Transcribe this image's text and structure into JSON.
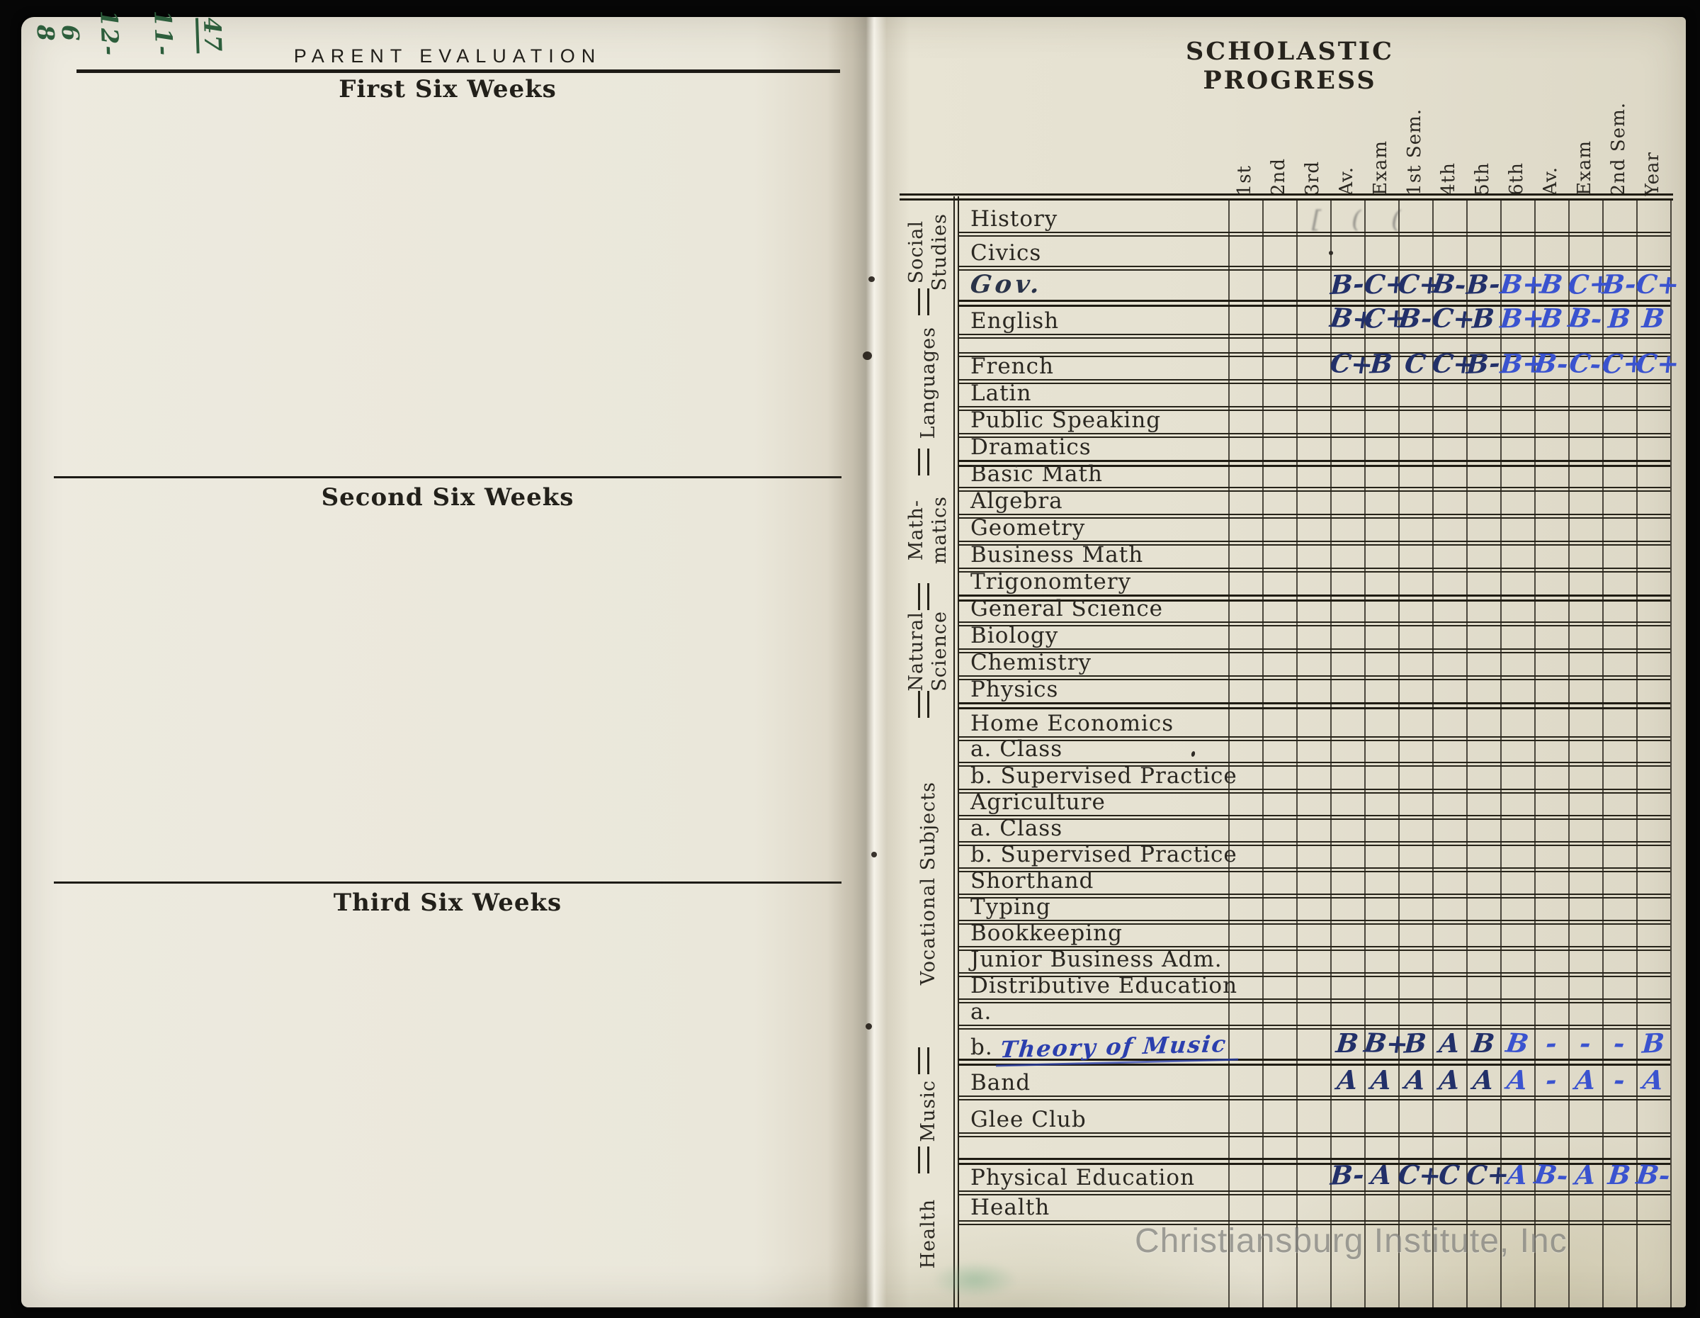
{
  "corner_note": {
    "text": "8 6 12-11/47",
    "tokens": [
      "8",
      "6",
      "12-",
      "11-",
      "47"
    ]
  },
  "left_page": {
    "title": "PARENT EVALUATION",
    "headings": [
      "First Six Weeks",
      "Second Six Weeks",
      "Third Six Weeks"
    ]
  },
  "right_page": {
    "title": "SCHOLASTIC PROGRESS",
    "column_headers": [
      "1st",
      "2nd",
      "3rd",
      "Av.",
      "Exam",
      "1st Sem.",
      "4th",
      "5th",
      "6th",
      "Av.",
      "Exam",
      "2nd Sem.",
      "Year"
    ],
    "grades_start_column": "Av.",
    "sections": [
      {
        "name": "Social Studies",
        "lines": [
          "Social",
          "Studies"
        ],
        "rows": [
          {
            "label": "History"
          },
          {
            "label": "Civics"
          },
          {
            "label": "Gov.",
            "handwritten": true,
            "grades": [
              "B-",
              "C+",
              "C+",
              "B-",
              "B-",
              "B+",
              "B",
              "C+",
              "B-",
              "C+"
            ]
          }
        ]
      },
      {
        "name": "Languages",
        "lines": [
          "Languages"
        ],
        "rows": [
          {
            "label": "English",
            "grades": [
              "B+",
              "C+",
              "B-",
              "C+",
              "B",
              "B+",
              "B",
              "B-",
              "B",
              "B"
            ]
          },
          {
            "label": ""
          },
          {
            "label": "French",
            "grades": [
              "C+",
              "B",
              "C",
              "C+",
              "B-",
              "B+",
              "B-",
              "C-",
              "C+",
              "C+"
            ]
          },
          {
            "label": "Latin"
          },
          {
            "label": "Public Speaking"
          },
          {
            "label": "Dramatics"
          }
        ]
      },
      {
        "name": "Math-matics",
        "lines": [
          "Math-",
          "matics"
        ],
        "rows": [
          {
            "label": "Basic Math"
          },
          {
            "label": "Algebra"
          },
          {
            "label": "Geometry"
          },
          {
            "label": "Business Math"
          },
          {
            "label": "Trigonomtery"
          }
        ]
      },
      {
        "name": "Natural Science",
        "lines": [
          "Natural",
          "Science"
        ],
        "rows": [
          {
            "label": "General Science"
          },
          {
            "label": "Biology"
          },
          {
            "label": "Chemistry"
          },
          {
            "label": "Physics"
          }
        ]
      },
      {
        "name": "Vocational Subjects",
        "lines": [
          "Vocational Subjects"
        ],
        "rows": [
          {
            "label": "Home Economics"
          },
          {
            "label": "a. Class"
          },
          {
            "label": "b. Supervised Practice"
          },
          {
            "label": "Agriculture"
          },
          {
            "label": "a. Class"
          },
          {
            "label": "b. Supervised Practice"
          },
          {
            "label": "Shorthand"
          },
          {
            "label": "Typing"
          },
          {
            "label": "Bookkeeping"
          },
          {
            "label": "Junior Business Adm."
          },
          {
            "label": "Distributive Education"
          },
          {
            "label": "a."
          },
          {
            "label": "b.",
            "handwritten_label": "Theory of Music",
            "grades": [
              "B",
              "B+",
              "B",
              "A",
              "B",
              "B",
              "-",
              "-",
              "-",
              "B"
            ]
          }
        ]
      },
      {
        "name": "Music",
        "lines": [
          "Music"
        ],
        "rows": [
          {
            "label": "Band",
            "grades": [
              "A",
              "A",
              "A",
              "A",
              "A",
              "A",
              "-",
              "A",
              "-",
              "A"
            ]
          },
          {
            "label": "Glee Club"
          },
          {
            "label": ""
          }
        ]
      },
      {
        "name": "Health",
        "lines": [
          "Health"
        ],
        "rows": [
          {
            "label": "Physical Education",
            "grades": [
              "B-",
              "A",
              "C+",
              "C",
              "C+",
              "A",
              "B-",
              "A",
              "B",
              "B-"
            ]
          },
          {
            "label": "Health"
          },
          {
            "label": ""
          }
        ]
      }
    ]
  },
  "watermark": "Christiansburg Institute, Inc",
  "ink_colors": {
    "dark_blue": "#223069",
    "light_blue": "#3a53cf",
    "green_note": "#2d5e3c",
    "print": "#26231d"
  }
}
